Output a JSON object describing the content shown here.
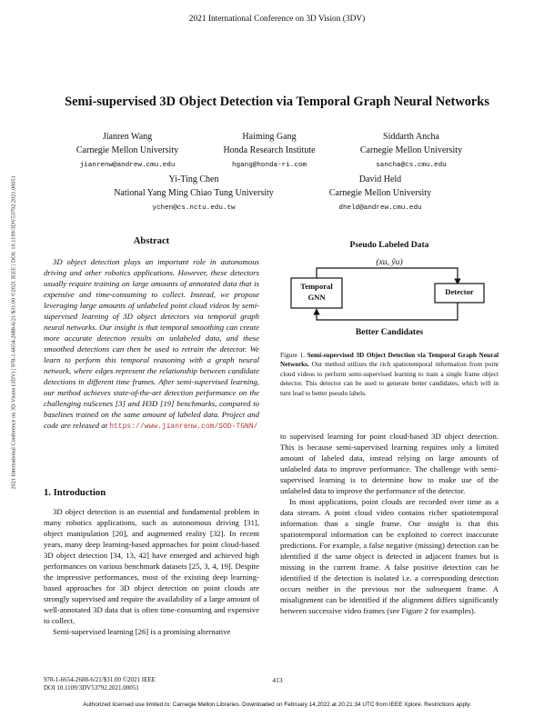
{
  "header": {
    "conference": "2021 International Conference on 3D Vision (3DV)"
  },
  "paper": {
    "title": "Semi-supervised 3D Object Detection via Temporal Graph Neural Networks",
    "authors": [
      {
        "name": "Jianren Wang",
        "affiliation": "Carnegie Mellon University",
        "email": "jianrenw@andrew.cmu.edu"
      },
      {
        "name": "Haiming Gang",
        "affiliation": "Honda Research Institute",
        "email": "hgang@honda-ri.com"
      },
      {
        "name": "Siddarth Ancha",
        "affiliation": "Carnegie Mellon University",
        "email": "sancha@cs.cmu.edu"
      },
      {
        "name": "Yi-Ting Chen",
        "affiliation": "National Yang Ming Chiao Tung University",
        "email": "ychen@cs.nctu.edu.tw"
      },
      {
        "name": "David Held",
        "affiliation": "Carnegie Mellon University",
        "email": "dheld@andrew.cmu.edu"
      }
    ]
  },
  "sidebar_text": "2021 International Conference on 3D Vision (3DV) | 978-1-6654-2688-6/21/$31.00 ©2021 IEEE | DOI: 10.1109/3DV53792.2021.00051",
  "abstract": {
    "heading": "Abstract",
    "text": "3D object detection plays an important role in autonomous driving and other robotics applications. However, these detectors usually require training on large amounts of annotated data that is expensive and time-consuming to collect. Instead, we propose leveraging large amounts of unlabeled point cloud videos by semi-supervised learning of 3D object detectors via temporal graph neural networks. Our insight is that temporal smoothing can create more accurate detection results on unlabeled data, and these smoothed detections can then be used to retrain the detector. We learn to perform this temporal reasoning with a graph neural network, where edges represent the relationship between candidate detections in different time frames. After semi-supervised learning, our method achieves state-of-the-art detection performance on the challenging nuScenes [3] and H3D [19] benchmarks, compared to baselines trained on the same amount of labeled data. Project and code are released at",
    "url": "https://www.jianrenw.com/SOD-TGNN/"
  },
  "figure": {
    "top_label": "Pseudo Labeled Data",
    "math": "(xu, ŷu)",
    "box_left": "Temporal GNN",
    "box_right": "Detector",
    "bottom_label": "Better Candidates",
    "caption_label": "Figure 1.",
    "caption_bold": "Semi-supervised 3D Object Detection via Temporal Graph Neural Networks.",
    "caption_text": "Our method utilizes the rich spatiotemporal information from point cloud videos to perform semi-supervised learning to train a single frame object detector. This detector can be used to generate better candidates, which will in turn lead to better pseudo labels."
  },
  "section1": {
    "heading": "1. Introduction",
    "p1": "3D object detection is an essential and fundamental problem in many robotics applications, such as autonomous driving [31], object manipulation [20], and augmented reality [32]. In recent years, many deep learning-based approaches for point cloud-based 3D object detection [34, 13, 42] have emerged and achieved high performances on various benchmark datasets [25, 3, 4, 19]. Despite the impressive performances, most of the existing deep learning-based approaches for 3D object detection on point clouds are strongly supervised and require the availability of a large amount of well-annotated 3D data that is often time-consuming and expensive to collect.",
    "p2": "Semi-supervised learning [26] is a promising alternative"
  },
  "right_col": {
    "p1": "to supervised learning for point cloud-based 3D object detection. This is because semi-supervised learning requires only a limited amount of labeled data, instead relying on large amounts of unlabeled data to improve performance. The challenge with semi-supervised learning is to determine how to make use of the unlabeled data to improve the performance of the detector.",
    "p2": "In most applications, point clouds are recorded over time as a data stream. A point cloud video contains richer spatiotemporal information than a single frame. Our insight is that this spatiotemporal information can be exploited to correct inaccurate predictions. For example, a false negative (missing) detection can be identified if the same object is detected in adjacent frames but is missing in the current frame. A false positive detection can be identified if the detection is isolated i.e. a corresponding detection occurs neither in the previous nor the subsequent frame. A misalignment can be identified if the alignment differs significantly between successive video frames (see Figure 2 for examples)."
  },
  "footer": {
    "line1": "978-1-6654-2688-6/21/$31.00 ©2021 IEEE",
    "line2": "DOI 10.1109/3DV53792.2021.00051",
    "page": "413",
    "license": "Authorized licensed use limited to: Carnegie Mellon Libraries. Downloaded on February 14,2022 at 20:21:34 UTC from IEEE Xplore.  Restrictions apply."
  }
}
